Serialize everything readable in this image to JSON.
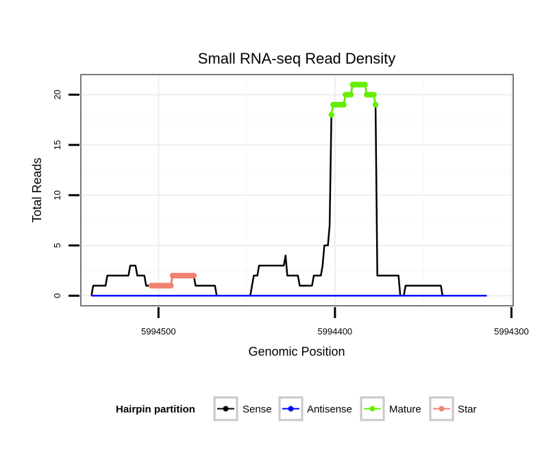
{
  "chart_data": {
    "type": "line",
    "title": "Small RNA-seq Read Density",
    "xlabel": "Genomic Position",
    "ylabel": "Total Reads",
    "xlim": [
      5994544,
      5994299
    ],
    "ylim": [
      -1,
      22
    ],
    "x_reversed": true,
    "xticks": [
      5994500,
      5994400,
      5994300
    ],
    "xtick_labels": [
      "5994500",
      "5994400",
      "5994300"
    ],
    "yticks": [
      0,
      5,
      10,
      15,
      20
    ],
    "ytick_labels": [
      "0",
      "5",
      "10",
      "15",
      "20"
    ],
    "grid": true,
    "legend": {
      "title": "Hairpin partition",
      "position": "bottom",
      "entries": [
        {
          "name": "Sense",
          "color": "#000000"
        },
        {
          "name": "Antisense",
          "color": "#0000ff"
        },
        {
          "name": "Mature",
          "color": "#66ee00"
        },
        {
          "name": "Star",
          "color": "#f08070"
        }
      ]
    },
    "series": [
      {
        "name": "Sense",
        "color": "#000000",
        "marker": false,
        "points": [
          [
            5994538,
            0
          ],
          [
            5994537,
            1
          ],
          [
            5994530,
            1
          ],
          [
            5994529,
            2
          ],
          [
            5994517,
            2
          ],
          [
            5994516,
            3
          ],
          [
            5994513,
            3
          ],
          [
            5994512,
            2
          ],
          [
            5994508,
            2
          ],
          [
            5994507,
            1
          ],
          [
            5994497,
            1
          ],
          [
            5994496,
            1
          ],
          [
            5994493,
            1
          ],
          [
            5994492,
            2
          ],
          [
            5994480,
            2
          ],
          [
            5994479,
            1
          ],
          [
            5994468,
            1
          ],
          [
            5994467,
            0
          ],
          [
            5994448,
            0
          ],
          [
            5994447,
            1
          ],
          [
            5994446,
            2
          ],
          [
            5994444,
            2
          ],
          [
            5994443,
            3
          ],
          [
            5994429,
            3
          ],
          [
            5994428,
            4
          ],
          [
            5994427,
            2
          ],
          [
            5994421,
            2
          ],
          [
            5994420,
            1
          ],
          [
            5994413,
            1
          ],
          [
            5994412,
            2
          ],
          [
            5994408,
            2
          ],
          [
            5994407,
            3
          ],
          [
            5994406,
            5
          ],
          [
            5994404,
            5
          ],
          [
            5994403,
            7
          ],
          [
            5994402,
            18
          ],
          [
            5994401,
            19
          ],
          [
            5994395,
            19
          ],
          [
            5994394,
            20
          ],
          [
            5994391,
            20
          ],
          [
            5994390,
            21
          ],
          [
            5994383,
            21
          ],
          [
            5994382,
            20
          ],
          [
            5994378,
            20
          ],
          [
            5994377,
            19
          ],
          [
            5994376,
            2
          ],
          [
            5994364,
            2
          ],
          [
            5994363,
            0
          ],
          [
            5994361,
            0
          ],
          [
            5994360,
            1
          ],
          [
            5994340,
            1
          ],
          [
            5994339,
            0
          ],
          [
            5994314,
            0
          ]
        ]
      },
      {
        "name": "Antisense",
        "color": "#0000ff",
        "marker": false,
        "points": [
          [
            5994538,
            0
          ],
          [
            5994314,
            0
          ]
        ]
      },
      {
        "name": "Star",
        "color": "#f08070",
        "marker": true,
        "points": [
          [
            5994504,
            1
          ],
          [
            5994503,
            1
          ],
          [
            5994502,
            1
          ],
          [
            5994501,
            1
          ],
          [
            5994500,
            1
          ],
          [
            5994499,
            1
          ],
          [
            5994498,
            1
          ],
          [
            5994497,
            1
          ],
          [
            5994496,
            1
          ],
          [
            5994495,
            1
          ],
          [
            5994494,
            1
          ],
          [
            5994493,
            1
          ],
          [
            5994492,
            2
          ],
          [
            5994491,
            2
          ],
          [
            5994490,
            2
          ],
          [
            5994489,
            2
          ],
          [
            5994488,
            2
          ],
          [
            5994487,
            2
          ],
          [
            5994486,
            2
          ],
          [
            5994485,
            2
          ],
          [
            5994484,
            2
          ],
          [
            5994483,
            2
          ],
          [
            5994482,
            2
          ],
          [
            5994481,
            2
          ],
          [
            5994480,
            2
          ]
        ]
      },
      {
        "name": "Mature",
        "color": "#66ee00",
        "marker": true,
        "points": [
          [
            5994402,
            18
          ],
          [
            5994401,
            19
          ],
          [
            5994400,
            19
          ],
          [
            5994399,
            19
          ],
          [
            5994398,
            19
          ],
          [
            5994397,
            19
          ],
          [
            5994396,
            19
          ],
          [
            5994395,
            19
          ],
          [
            5994394,
            20
          ],
          [
            5994393,
            20
          ],
          [
            5994392,
            20
          ],
          [
            5994391,
            20
          ],
          [
            5994390,
            21
          ],
          [
            5994389,
            21
          ],
          [
            5994388,
            21
          ],
          [
            5994387,
            21
          ],
          [
            5994386,
            21
          ],
          [
            5994385,
            21
          ],
          [
            5994384,
            21
          ],
          [
            5994383,
            21
          ],
          [
            5994382,
            20
          ],
          [
            5994381,
            20
          ],
          [
            5994380,
            20
          ],
          [
            5994379,
            20
          ],
          [
            5994378,
            20
          ],
          [
            5994377,
            19
          ]
        ]
      }
    ]
  }
}
